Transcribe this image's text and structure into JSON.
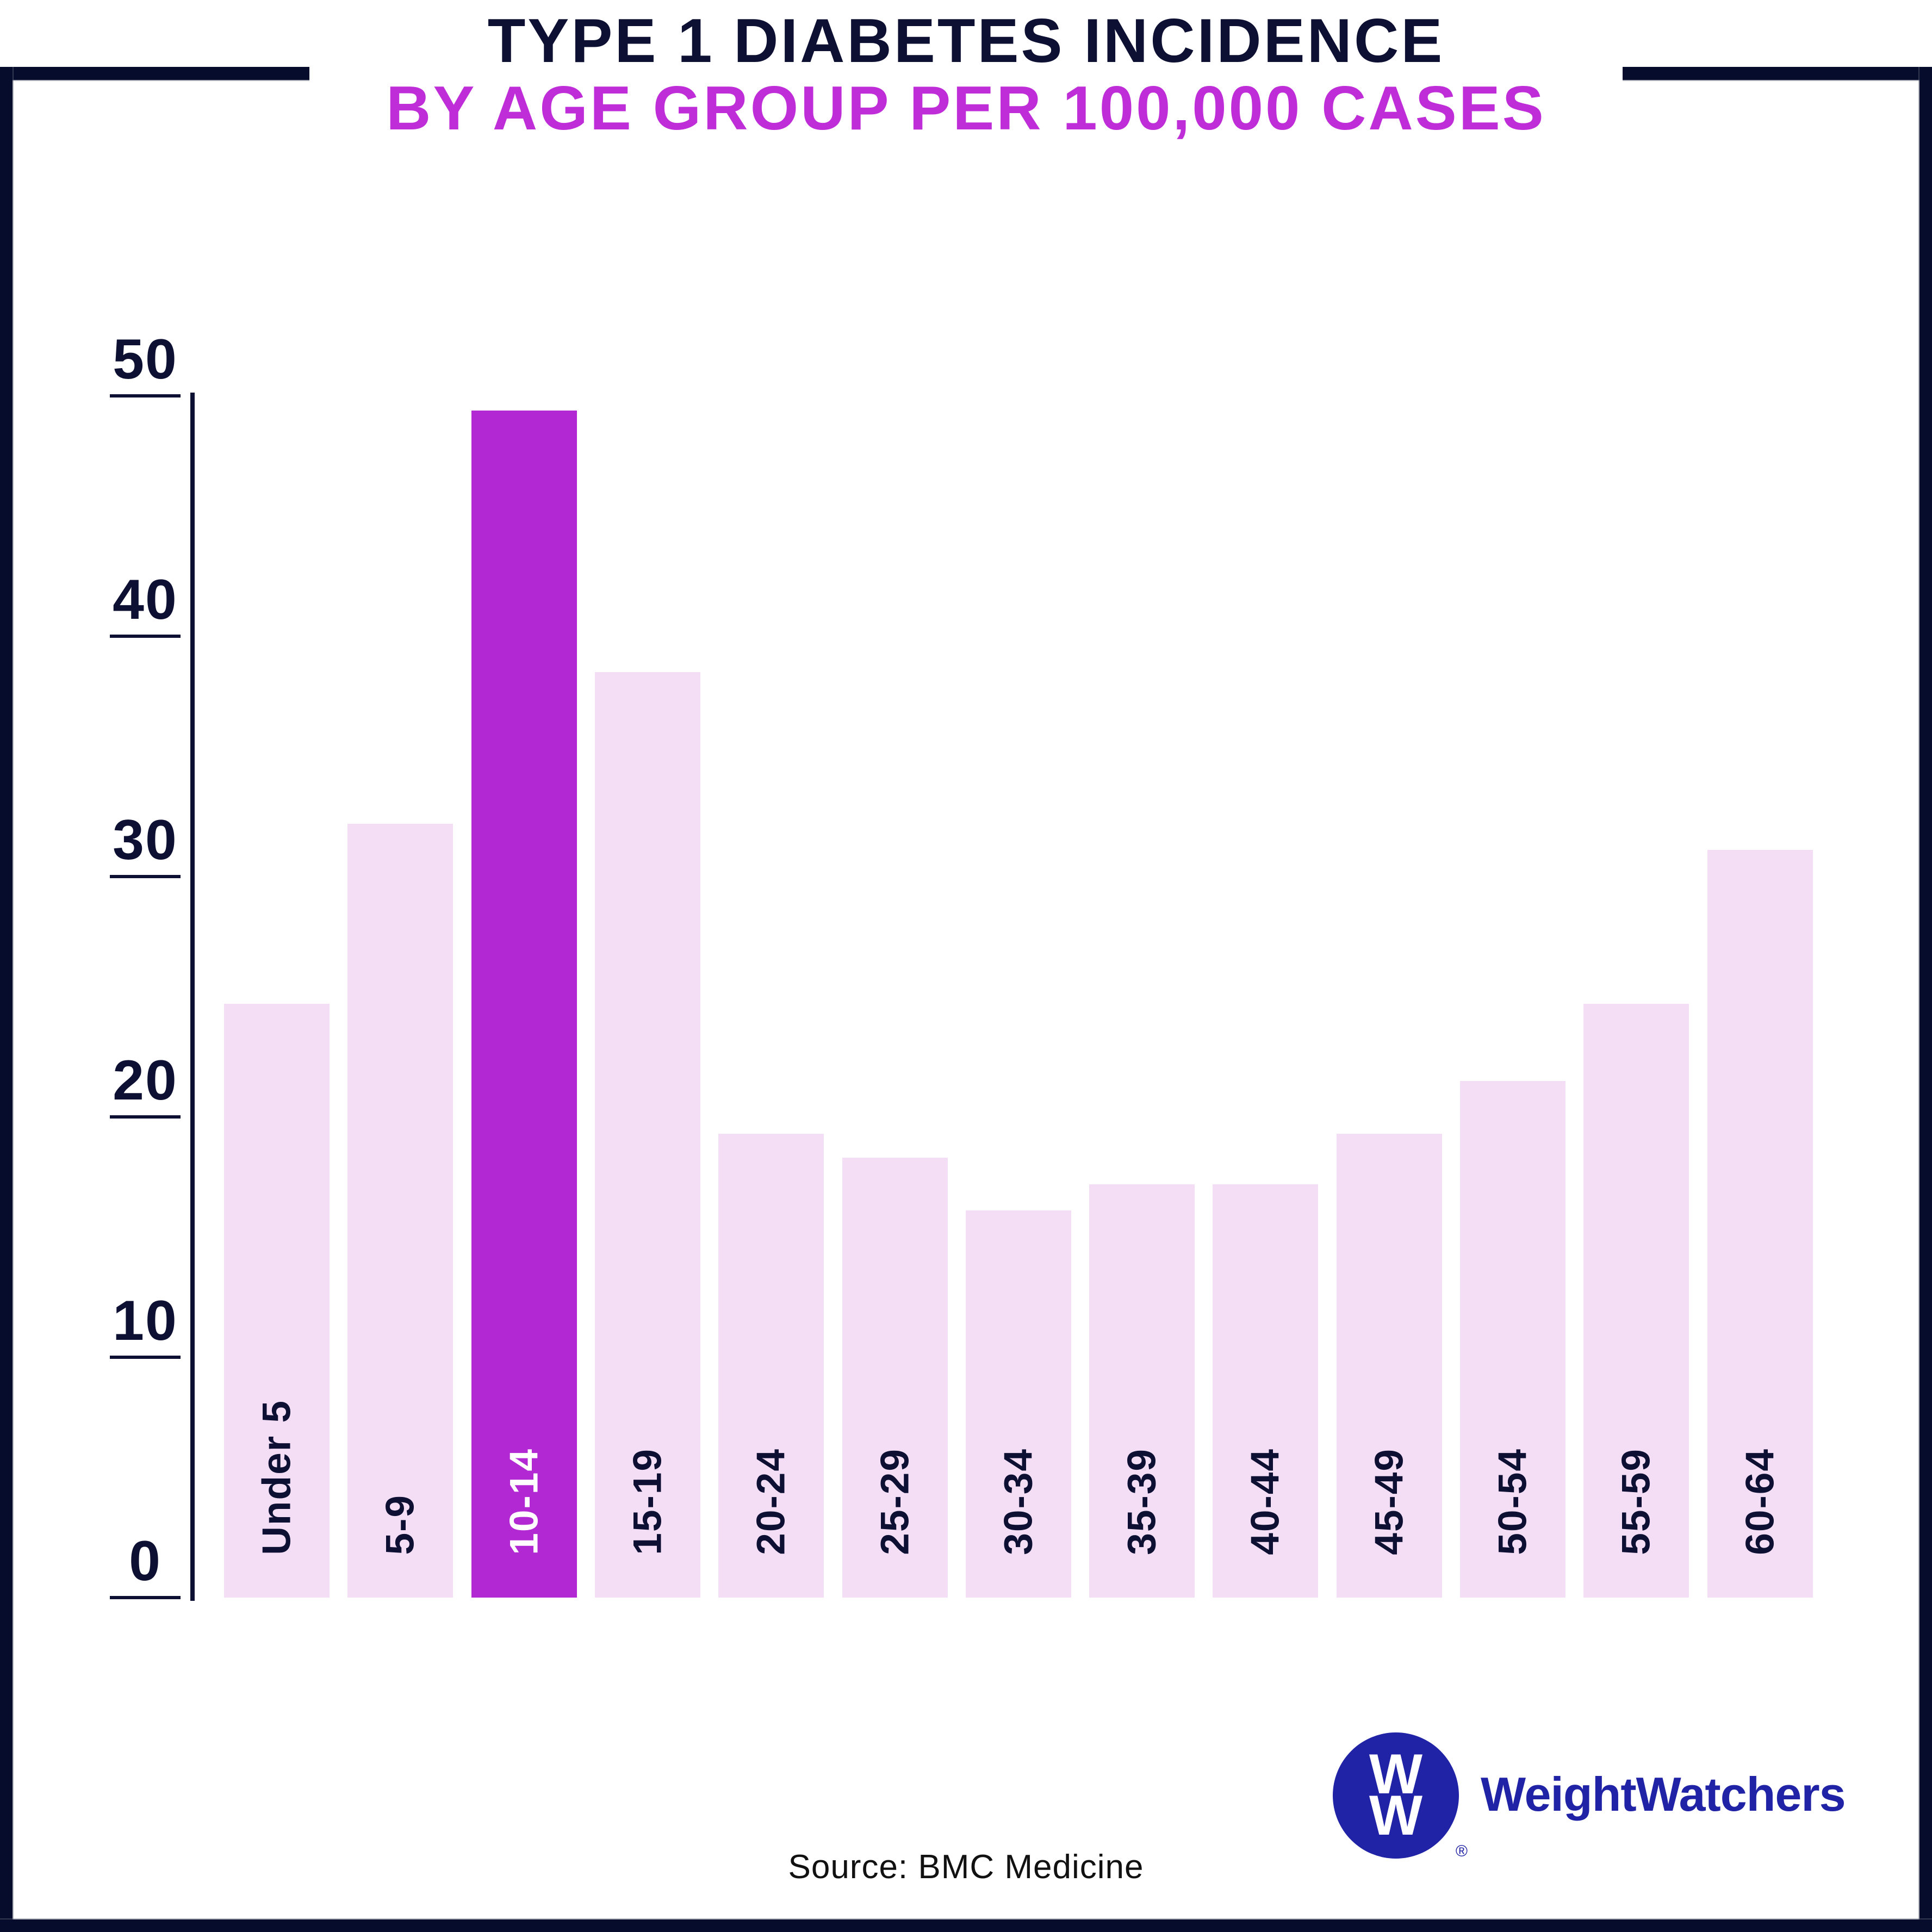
{
  "title": {
    "line1": "TYPE 1 DIABETES INCIDENCE",
    "line2": "BY AGE GROUP PER 100,000 CASES"
  },
  "source": "Source: BMC Medicine",
  "logo": {
    "monogram_top": "W",
    "monogram_bottom": "W",
    "registered_mark": "®",
    "wordmark": "WeightWatchers"
  },
  "colors": {
    "navy": "#0d1032",
    "frame": "#060c2c",
    "accent_magenta": "#b228d2",
    "title_magenta": "#be2dd7",
    "bar_light": "#f3def5",
    "logo_blue": "#2023a6",
    "source_text": "#111111",
    "label_on_accent": "#ffffff"
  },
  "chart_data": {
    "type": "bar",
    "title": "TYPE 1 DIABETES INCIDENCE BY AGE GROUP PER 100,000 CASES",
    "categories": [
      "Under 5",
      "5-9",
      "10-14",
      "15-19",
      "20-24",
      "25-29",
      "30-34",
      "35-39",
      "40-44",
      "45-49",
      "50-54",
      "55-59",
      "60-64"
    ],
    "values": [
      24.7,
      32.2,
      49.4,
      38.5,
      19.3,
      18.3,
      16.1,
      17.2,
      17.2,
      19.3,
      21.5,
      24.7,
      31.1
    ],
    "highlight_index": 2,
    "highlight_category": "10-14",
    "yticks": [
      0,
      10,
      20,
      30,
      40,
      50
    ],
    "ylim": [
      0,
      50
    ],
    "xlabel": "",
    "ylabel": "",
    "grid": false,
    "legend": false,
    "x_label_placement": "vertical-inside-bar-bottom"
  }
}
